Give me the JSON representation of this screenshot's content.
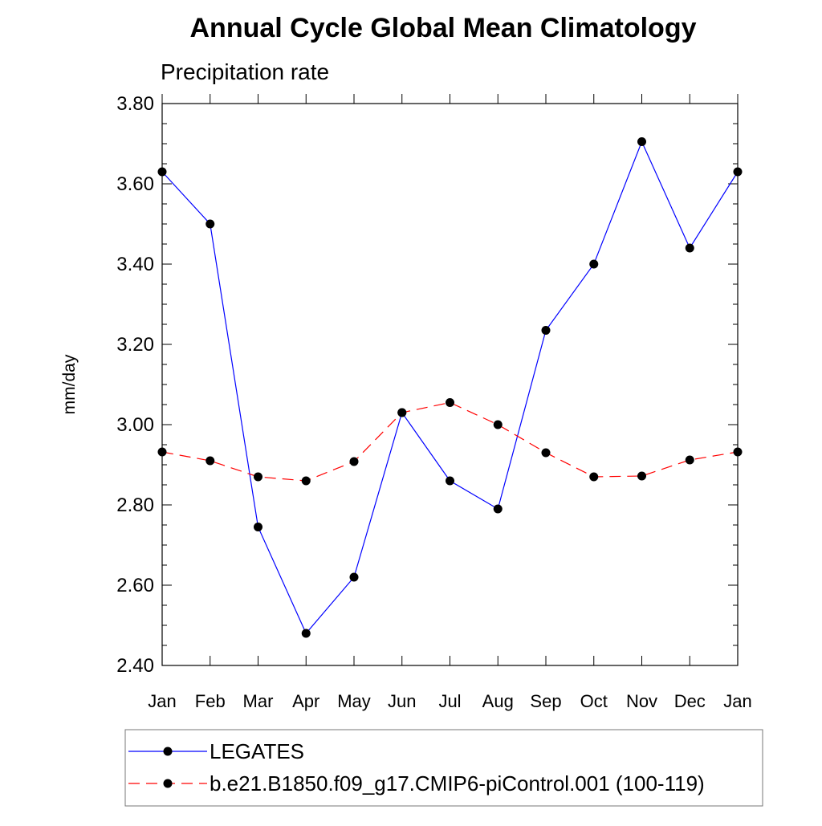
{
  "chart_data": {
    "type": "line",
    "title": "Annual Cycle Global Mean Climatology",
    "subtitle": "Precipitation rate",
    "xlabel": "",
    "ylabel": "mm/day",
    "categories": [
      "Jan",
      "Feb",
      "Mar",
      "Apr",
      "May",
      "Jun",
      "Jul",
      "Aug",
      "Sep",
      "Oct",
      "Nov",
      "Dec",
      "Jan"
    ],
    "ylim": [
      2.4,
      3.8
    ],
    "yticks": [
      "2.40",
      "2.60",
      "2.80",
      "3.00",
      "3.20",
      "3.40",
      "3.60",
      "3.80"
    ],
    "grid": false,
    "legend_position": "bottom",
    "series": [
      {
        "name": "LEGATES",
        "color": "#0000ff",
        "style": "solid",
        "marker": "filled-circle",
        "values": [
          3.63,
          3.5,
          2.745,
          2.48,
          2.62,
          3.03,
          2.86,
          2.79,
          3.235,
          3.4,
          3.705,
          3.44,
          3.63
        ]
      },
      {
        "name": "b.e21.B1850.f09_g17.CMIP6-piControl.001 (100-119)",
        "color": "#ff0000",
        "style": "dashed",
        "marker": "filled-circle",
        "values": [
          2.932,
          2.91,
          2.87,
          2.86,
          2.908,
          3.03,
          3.055,
          3.0,
          2.93,
          2.87,
          2.872,
          2.912,
          2.932
        ]
      }
    ]
  }
}
